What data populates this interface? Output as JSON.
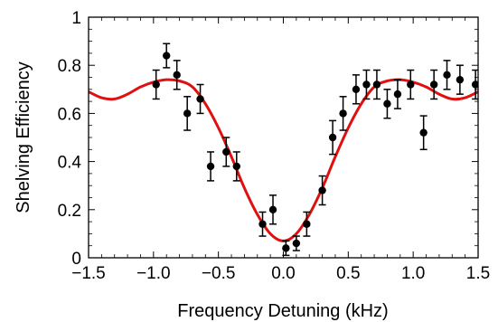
{
  "chart_data": {
    "type": "scatter",
    "title": "",
    "xlabel": "Frequency Detuning (kHz)",
    "ylabel": "Shelving Efficiency",
    "xlim": [
      -1.5,
      1.5
    ],
    "ylim": [
      0,
      1
    ],
    "xticks": [
      -1.5,
      -1.0,
      -0.5,
      0.0,
      0.5,
      1.0,
      1.5
    ],
    "xtick_labels": [
      "−1.5",
      "−1.0",
      "−0.5",
      "0.0",
      "0.5",
      "1.0",
      "1.5"
    ],
    "yticks": [
      0,
      0.2,
      0.4,
      0.6,
      0.8,
      1
    ],
    "ytick_labels": [
      "0",
      "0.2",
      "0.4",
      "0.6",
      "0.8",
      "1"
    ],
    "grid": false,
    "series": [
      {
        "kind": "points",
        "color": "#000000",
        "x": [
          -0.98,
          -0.9,
          -0.82,
          -0.74,
          -0.64,
          -0.56,
          -0.44,
          -0.36,
          -0.16,
          -0.08,
          0.02,
          0.1,
          0.18,
          0.3,
          0.38,
          0.46,
          0.56,
          0.64,
          0.72,
          0.8,
          0.88,
          0.98,
          1.08,
          1.16,
          1.26,
          1.36,
          1.48,
          1.56
        ],
        "y": [
          0.72,
          0.84,
          0.76,
          0.6,
          0.66,
          0.38,
          0.44,
          0.38,
          0.14,
          0.2,
          0.04,
          0.06,
          0.14,
          0.28,
          0.5,
          0.6,
          0.7,
          0.72,
          0.72,
          0.64,
          0.68,
          0.72,
          0.52,
          0.72,
          0.76,
          0.74,
          0.72,
          0.74
        ],
        "yerr": [
          0.06,
          0.05,
          0.06,
          0.07,
          0.06,
          0.06,
          0.06,
          0.06,
          0.05,
          0.06,
          0.03,
          0.03,
          0.05,
          0.06,
          0.07,
          0.07,
          0.06,
          0.06,
          0.06,
          0.06,
          0.06,
          0.06,
          0.07,
          0.06,
          0.06,
          0.06,
          0.06,
          0.06
        ]
      },
      {
        "kind": "fit-curve",
        "color": "#e01010",
        "x": [
          -1.5,
          -1.4,
          -1.3,
          -1.2,
          -1.1,
          -1.0,
          -0.9,
          -0.8,
          -0.7,
          -0.6,
          -0.5,
          -0.4,
          -0.3,
          -0.2,
          -0.1,
          0.0,
          0.1,
          0.2,
          0.3,
          0.4,
          0.5,
          0.6,
          0.7,
          0.8,
          0.9,
          1.0,
          1.1,
          1.2,
          1.3,
          1.4,
          1.5
        ],
        "y": [
          0.69,
          0.665,
          0.66,
          0.68,
          0.71,
          0.73,
          0.74,
          0.735,
          0.71,
          0.64,
          0.54,
          0.42,
          0.29,
          0.18,
          0.1,
          0.07,
          0.1,
          0.18,
          0.29,
          0.42,
          0.54,
          0.64,
          0.71,
          0.735,
          0.74,
          0.73,
          0.71,
          0.68,
          0.66,
          0.665,
          0.69
        ]
      }
    ]
  }
}
